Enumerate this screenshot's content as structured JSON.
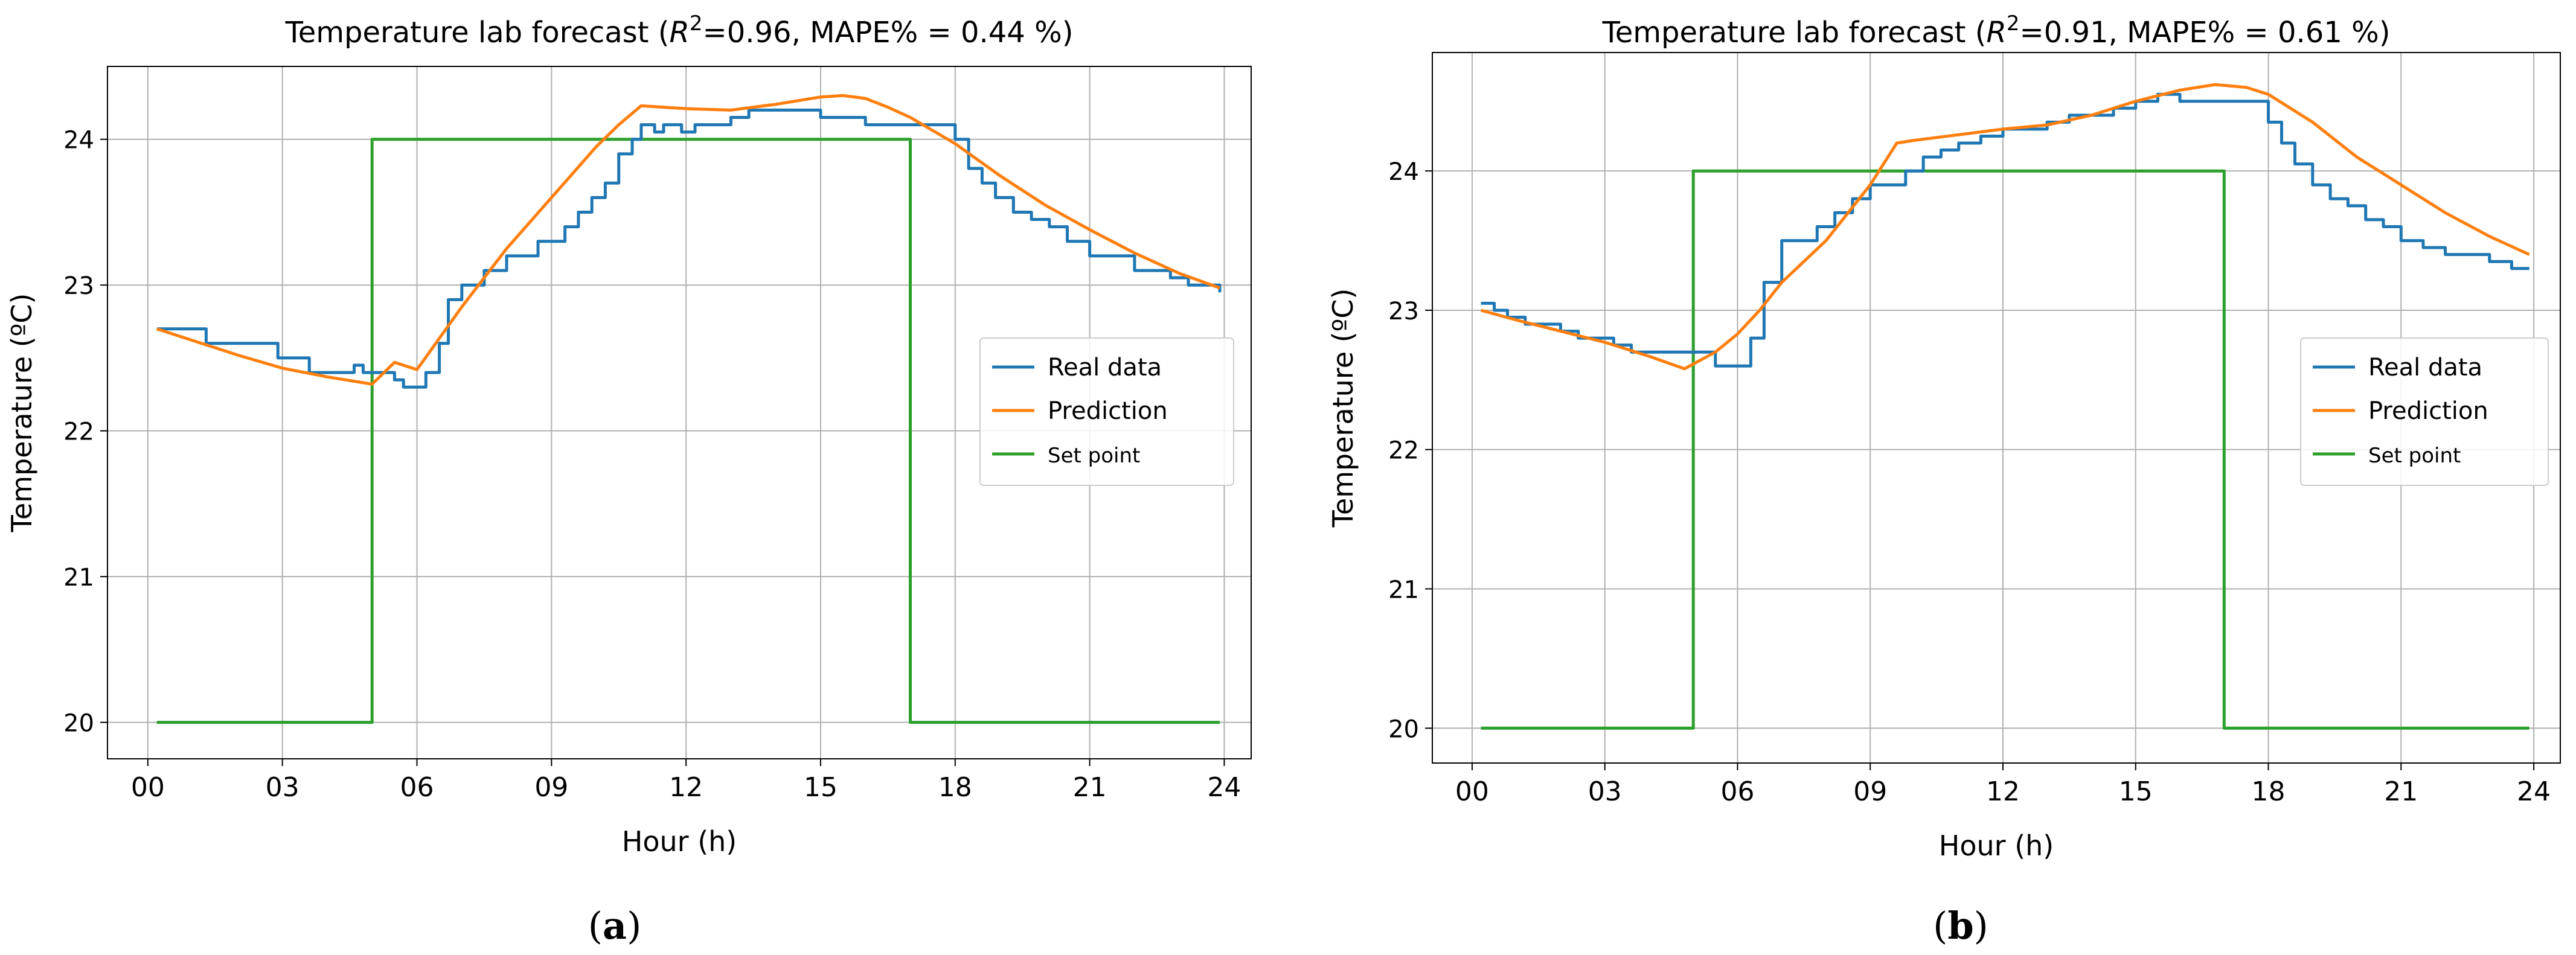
{
  "panels": [
    {
      "caption": "a"
    },
    {
      "caption": "b"
    }
  ],
  "chart_data": [
    {
      "type": "line",
      "title_prefix": "Temperature lab forecast (",
      "title_r2_symbol": "R",
      "title_r2_exp": "2",
      "title_suffix": "=0.96, MAPE% = 0.44 %)",
      "xlabel": "Hour (h)",
      "ylabel": "Temperature (ºC)",
      "xlim": [
        -0.9,
        24.6
      ],
      "ylim": [
        19.75,
        24.5
      ],
      "xticks": [
        0,
        3,
        6,
        9,
        12,
        15,
        18,
        21,
        24
      ],
      "xtick_labels": [
        "00",
        "03",
        "06",
        "09",
        "12",
        "15",
        "18",
        "21",
        "24"
      ],
      "yticks": [
        20,
        21,
        22,
        23,
        24
      ],
      "ytick_labels": [
        "20",
        "21",
        "22",
        "23",
        "24"
      ],
      "grid": true,
      "legend_position": "center-right",
      "series": [
        {
          "name": "Real data",
          "color": "#1f77b4",
          "step": true,
          "x": [
            0.2,
            1.0,
            1.3,
            2.0,
            2.6,
            2.9,
            3.4,
            3.6,
            4.0,
            4.4,
            4.6,
            4.8,
            5.0,
            5.3,
            5.5,
            5.7,
            6.2,
            6.5,
            6.7,
            7.0,
            7.3,
            7.5,
            8.0,
            8.3,
            8.7,
            9.0,
            9.3,
            9.6,
            9.9,
            10.2,
            10.5,
            10.8,
            11.0,
            11.3,
            11.5,
            11.9,
            12.2,
            12.6,
            13.0,
            13.4,
            14.0,
            14.5,
            15.0,
            15.7,
            16.0,
            16.5,
            17.0,
            17.5,
            18.0,
            18.3,
            18.6,
            18.9,
            19.3,
            19.7,
            20.1,
            20.5,
            21.0,
            21.5,
            22.0,
            22.4,
            22.8,
            23.2,
            23.6,
            23.9
          ],
          "values": [
            22.7,
            22.7,
            22.6,
            22.6,
            22.6,
            22.5,
            22.5,
            22.4,
            22.4,
            22.4,
            22.45,
            22.4,
            22.4,
            22.4,
            22.35,
            22.3,
            22.4,
            22.6,
            22.9,
            23.0,
            23.0,
            23.1,
            23.2,
            23.2,
            23.3,
            23.3,
            23.4,
            23.5,
            23.6,
            23.7,
            23.9,
            24.0,
            24.1,
            24.05,
            24.1,
            24.05,
            24.1,
            24.1,
            24.15,
            24.2,
            24.2,
            24.2,
            24.15,
            24.15,
            24.1,
            24.1,
            24.1,
            24.1,
            24.0,
            23.8,
            23.7,
            23.6,
            23.5,
            23.45,
            23.4,
            23.3,
            23.2,
            23.2,
            23.1,
            23.1,
            23.05,
            23.0,
            23.0,
            22.95
          ]
        },
        {
          "name": "Prediction",
          "color": "#ff7f0e",
          "step": false,
          "x": [
            0.2,
            1.0,
            2.0,
            3.0,
            4.0,
            5.0,
            5.5,
            6.0,
            7.0,
            8.0,
            9.0,
            10.0,
            10.5,
            11.0,
            12.0,
            13.0,
            14.0,
            15.0,
            15.5,
            16.0,
            16.5,
            17.0,
            18.0,
            19.0,
            20.0,
            21.0,
            22.0,
            23.0,
            23.9
          ],
          "values": [
            22.7,
            22.62,
            22.52,
            22.43,
            22.37,
            22.32,
            22.47,
            22.42,
            22.85,
            23.25,
            23.6,
            23.95,
            24.1,
            24.23,
            24.21,
            24.2,
            24.24,
            24.29,
            24.3,
            24.28,
            24.22,
            24.15,
            23.97,
            23.75,
            23.55,
            23.38,
            23.22,
            23.08,
            22.98
          ]
        },
        {
          "name": "Set point",
          "color": "#2ca02c",
          "step": false,
          "x": [
            0.2,
            5.0,
            5.0,
            17.0,
            17.0,
            23.9
          ],
          "values": [
            20,
            20,
            24,
            24,
            20,
            20
          ]
        }
      ]
    },
    {
      "type": "line",
      "title_prefix": "Temperature lab forecast (",
      "title_r2_symbol": "R",
      "title_r2_exp": "2",
      "title_suffix": "=0.91, MAPE% = 0.61 %)",
      "xlabel": "Hour (h)",
      "ylabel": "Temperature (ºC)",
      "xlim": [
        -0.9,
        24.6
      ],
      "ylim": [
        19.75,
        24.85
      ],
      "xticks": [
        0,
        3,
        6,
        9,
        12,
        15,
        18,
        21,
        24
      ],
      "xtick_labels": [
        "00",
        "03",
        "06",
        "09",
        "12",
        "15",
        "18",
        "21",
        "24"
      ],
      "yticks": [
        20,
        21,
        22,
        23,
        24
      ],
      "ytick_labels": [
        "20",
        "21",
        "22",
        "23",
        "24"
      ],
      "grid": true,
      "legend_position": "center-right",
      "series": [
        {
          "name": "Real data",
          "color": "#1f77b4",
          "step": true,
          "x": [
            0.2,
            0.5,
            0.8,
            1.2,
            1.6,
            2.0,
            2.4,
            2.8,
            3.2,
            3.6,
            4.0,
            4.5,
            5.0,
            5.5,
            6.0,
            6.3,
            6.6,
            7.0,
            7.4,
            7.8,
            8.2,
            8.6,
            9.0,
            9.4,
            9.8,
            10.2,
            10.6,
            11.0,
            11.5,
            12.0,
            12.5,
            13.0,
            13.5,
            14.0,
            14.5,
            15.0,
            15.5,
            16.0,
            17.0,
            17.5,
            18.0,
            18.3,
            18.6,
            19.0,
            19.4,
            19.8,
            20.2,
            20.6,
            21.0,
            21.5,
            22.0,
            22.5,
            23.0,
            23.5,
            23.9
          ],
          "values": [
            23.05,
            23.0,
            22.95,
            22.9,
            22.9,
            22.85,
            22.8,
            22.8,
            22.75,
            22.7,
            22.7,
            22.7,
            22.7,
            22.6,
            22.6,
            22.8,
            23.2,
            23.5,
            23.5,
            23.6,
            23.7,
            23.8,
            23.9,
            23.9,
            24.0,
            24.1,
            24.15,
            24.2,
            24.25,
            24.3,
            24.3,
            24.35,
            24.4,
            24.4,
            24.45,
            24.5,
            24.55,
            24.5,
            24.5,
            24.5,
            24.35,
            24.2,
            24.05,
            23.9,
            23.8,
            23.75,
            23.65,
            23.6,
            23.5,
            23.45,
            23.4,
            23.4,
            23.35,
            23.3,
            23.3
          ]
        },
        {
          "name": "Prediction",
          "color": "#ff7f0e",
          "step": false,
          "x": [
            0.2,
            1.0,
            2.0,
            3.0,
            4.0,
            4.8,
            5.5,
            6.0,
            6.5,
            7.0,
            8.0,
            9.0,
            9.6,
            10.0,
            11.0,
            12.0,
            13.0,
            14.0,
            15.0,
            16.0,
            16.8,
            17.5,
            18.0,
            19.0,
            20.0,
            21.0,
            22.0,
            23.0,
            23.9
          ],
          "values": [
            23.0,
            22.93,
            22.85,
            22.77,
            22.67,
            22.58,
            22.7,
            22.83,
            23.0,
            23.2,
            23.5,
            23.9,
            24.2,
            24.22,
            24.26,
            24.3,
            24.33,
            24.4,
            24.5,
            24.58,
            24.62,
            24.6,
            24.55,
            24.35,
            24.1,
            23.9,
            23.7,
            23.53,
            23.4
          ]
        },
        {
          "name": "Set point",
          "color": "#2ca02c",
          "step": false,
          "x": [
            0.2,
            5.0,
            5.0,
            17.0,
            17.0,
            23.9
          ],
          "values": [
            20,
            20,
            24,
            24,
            20,
            20
          ]
        }
      ]
    }
  ]
}
